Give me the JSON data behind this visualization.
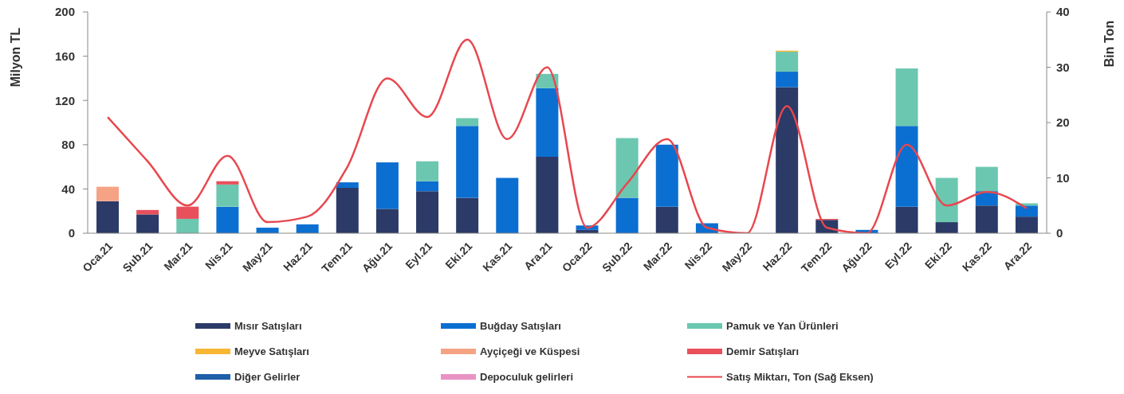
{
  "chart_data": {
    "type": "bar",
    "stacked": true,
    "ylabel": "Milyon TL",
    "y2label": "Bin Ton",
    "categories": [
      "Oca.21",
      "Şub.21",
      "Mar.21",
      "Nis.21",
      "May.21",
      "Haz.21",
      "Tem.21",
      "Ağu.21",
      "Eyl.21",
      "Eki.21",
      "Kas.21",
      "Ara.21",
      "Oca.22",
      "Şub.22",
      "Mar.22",
      "Nis.22",
      "May.22",
      "Haz.22",
      "Tem.22",
      "Ağu.22",
      "Eyl.22",
      "Eki.22",
      "Kas.22",
      "Ara.22"
    ],
    "series": [
      {
        "name": "Mısır Satışları",
        "color": "#2b3a67",
        "values": [
          29,
          17,
          null,
          null,
          null,
          null,
          41,
          22,
          38,
          32,
          null,
          69,
          3,
          null,
          24,
          null,
          null,
          132,
          12,
          null,
          24,
          10,
          25,
          15
        ]
      },
      {
        "name": "Buğday Satışları",
        "color": "#0b6fd1",
        "values": [
          null,
          null,
          null,
          24,
          5,
          8,
          5,
          42,
          9,
          65,
          50,
          62,
          4,
          32,
          56,
          9,
          null,
          14,
          null,
          3,
          73,
          null,
          13,
          10
        ]
      },
      {
        "name": "Pamuk ve Yan Ürünleri",
        "color": "#6cc7b0",
        "values": [
          null,
          null,
          13,
          20,
          null,
          null,
          null,
          null,
          18,
          7,
          null,
          13,
          null,
          54,
          null,
          null,
          null,
          18,
          null,
          null,
          52,
          40,
          22,
          2
        ]
      },
      {
        "name": "Meyve Satışları",
        "color": "#f7b733",
        "values": [
          null,
          null,
          null,
          null,
          null,
          null,
          null,
          null,
          null,
          null,
          null,
          null,
          null,
          null,
          null,
          null,
          null,
          1,
          null,
          null,
          null,
          null,
          null,
          null
        ]
      },
      {
        "name": "Ayçiçeği ve Küspesi",
        "color": "#f6a385",
        "values": [
          13,
          null,
          null,
          null,
          null,
          null,
          null,
          null,
          null,
          null,
          null,
          null,
          null,
          null,
          null,
          null,
          null,
          null,
          null,
          null,
          null,
          null,
          null,
          null
        ]
      },
      {
        "name": "Demir Satışları",
        "color": "#e8505b",
        "values": [
          null,
          4,
          11,
          3,
          null,
          null,
          null,
          null,
          null,
          null,
          null,
          null,
          null,
          null,
          null,
          null,
          null,
          null,
          1,
          null,
          null,
          null,
          null,
          null
        ]
      },
      {
        "name": "Diğer Gelirler",
        "color": "#1f5fa8",
        "values": [
          null,
          null,
          null,
          null,
          null,
          null,
          null,
          null,
          null,
          null,
          null,
          null,
          null,
          null,
          null,
          null,
          null,
          null,
          null,
          null,
          null,
          null,
          null,
          null
        ]
      },
      {
        "name": "Depoculuk gelirleri",
        "color": "#e993c4",
        "values": [
          null,
          null,
          null,
          null,
          null,
          null,
          null,
          null,
          null,
          null,
          null,
          null,
          null,
          null,
          null,
          null,
          null,
          null,
          null,
          null,
          null,
          null,
          null,
          null
        ]
      },
      {
        "name": "Satış Miktarı, Ton (Sağ Eksen)",
        "type": "line",
        "axis": "y2",
        "color": "#e8474f",
        "values": [
          21,
          13,
          5,
          14,
          2,
          3,
          12,
          28,
          21,
          35,
          17,
          30,
          1,
          9,
          17,
          1,
          0,
          23,
          1,
          0,
          16,
          5,
          7.5,
          4.5
        ]
      }
    ],
    "ylim": [
      0,
      200
    ],
    "yticks": [
      0,
      40,
      80,
      120,
      160,
      200
    ],
    "y2lim": [
      0,
      40
    ],
    "y2ticks": [
      0,
      10,
      20,
      30,
      40
    ],
    "legend": "bottom"
  }
}
